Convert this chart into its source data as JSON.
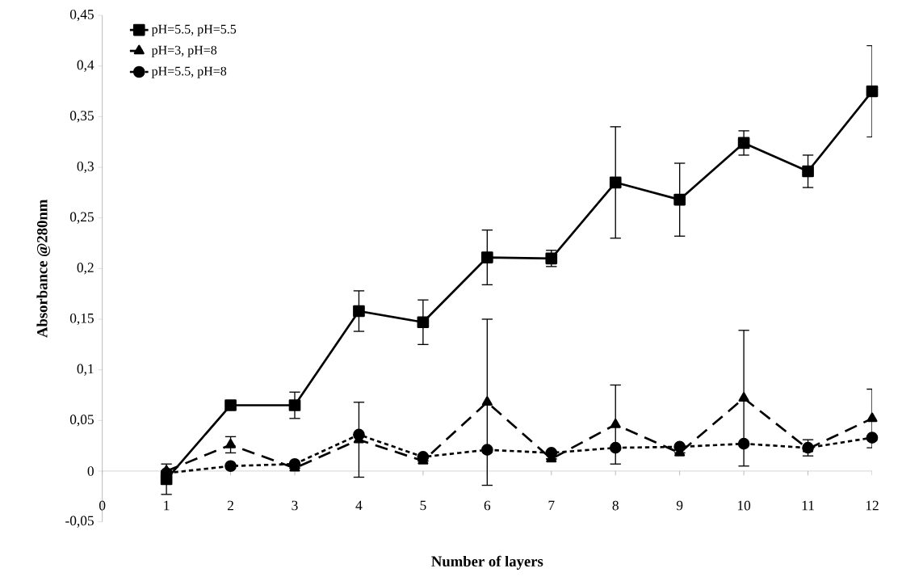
{
  "chart_data": {
    "type": "line",
    "xlabel": "Number of layers",
    "ylabel": "Absorbance @280nm",
    "x": [
      1,
      2,
      3,
      4,
      5,
      6,
      7,
      8,
      9,
      10,
      11,
      12
    ],
    "series": [
      {
        "name": "pH=5.5, pH=5.5",
        "color": "#000000",
        "marker": "square",
        "line_style": "solid",
        "values": [
          -0.008,
          0.065,
          0.065,
          0.158,
          0.147,
          0.211,
          0.21,
          0.285,
          0.268,
          0.324,
          0.296,
          0.375
        ],
        "errors": [
          0.015,
          0.004,
          0.013,
          0.02,
          0.022,
          0.027,
          0.008,
          0.055,
          0.036,
          0.012,
          0.016,
          0.045
        ]
      },
      {
        "name": "pH=3, pH=8",
        "color": "#000000",
        "marker": "triangle",
        "line_style": "dashed",
        "values": [
          0,
          0.026,
          0.003,
          0.031,
          0.01,
          0.068,
          0.012,
          0.046,
          0.018,
          0.072,
          0.022,
          0.052
        ],
        "errors": [
          null,
          0.008,
          null,
          0.037,
          null,
          0.082,
          null,
          0.039,
          null,
          0.067,
          null,
          0.029
        ]
      },
      {
        "name": "pH=5.5, pH=8",
        "color": "#000000",
        "marker": "circle",
        "line_style": "dotted",
        "values": [
          -0.002,
          0.005,
          0.007,
          0.036,
          0.014,
          0.021,
          0.018,
          0.023,
          0.024,
          0.027,
          0.023,
          0.033
        ],
        "errors": [
          null,
          null,
          null,
          null,
          null,
          null,
          null,
          null,
          null,
          null,
          0.008,
          null
        ]
      }
    ],
    "xlim": [
      0,
      12
    ],
    "xticks": [
      0,
      1,
      2,
      3,
      4,
      5,
      6,
      7,
      8,
      9,
      10,
      11,
      12
    ],
    "ylim": [
      -0.05,
      0.45
    ],
    "yticks": [
      {
        "value": -0.05,
        "label": "-0,05"
      },
      {
        "value": 0,
        "label": "0"
      },
      {
        "value": 0.05,
        "label": "0,05"
      },
      {
        "value": 0.1,
        "label": "0,1"
      },
      {
        "value": 0.15,
        "label": "0,15"
      },
      {
        "value": 0.2,
        "label": "0,2"
      },
      {
        "value": 0.25,
        "label": "0,25"
      },
      {
        "value": 0.3,
        "label": "0,3"
      },
      {
        "value": 0.35,
        "label": "0,35"
      },
      {
        "value": 0.4,
        "label": "0,4"
      },
      {
        "value": 0.45,
        "label": "0,45"
      }
    ],
    "grid": false,
    "legend": "top left"
  }
}
